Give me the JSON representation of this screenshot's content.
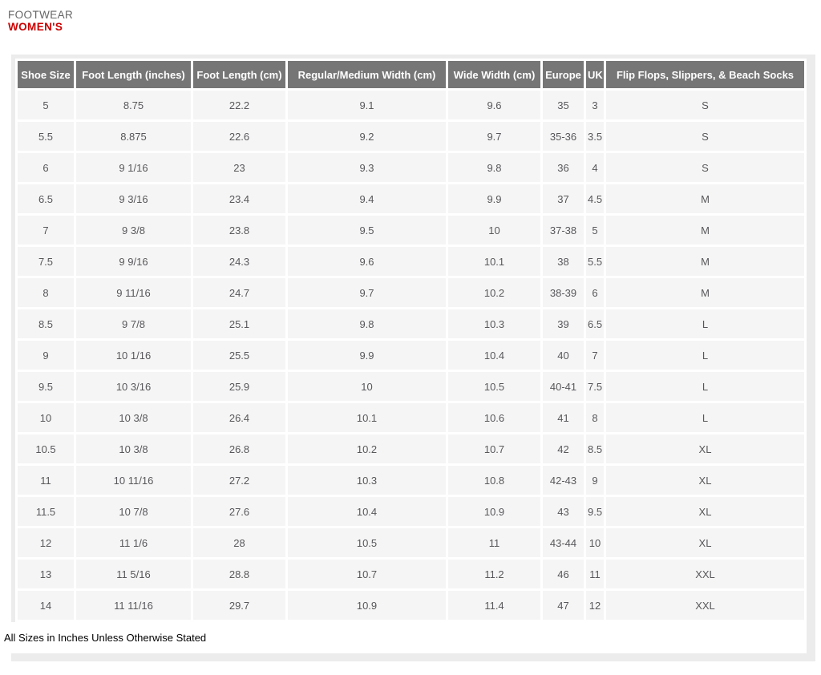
{
  "header": {
    "category": "FOOTWEAR",
    "title": "WOMEN'S"
  },
  "table": {
    "columns": [
      "Shoe Size",
      "Foot Length (inches)",
      "Foot Length (cm)",
      "Regular/Medium Width (cm)",
      "Wide Width (cm)",
      "Europe",
      "UK",
      "Flip Flops, Slippers, & Beach Socks"
    ],
    "rows": [
      [
        "5",
        "8.75",
        "22.2",
        "9.1",
        "9.6",
        "35",
        "3",
        "S"
      ],
      [
        "5.5",
        "8.875",
        "22.6",
        "9.2",
        "9.7",
        "35-36",
        "3.5",
        "S"
      ],
      [
        "6",
        "9 1/16",
        "23",
        "9.3",
        "9.8",
        "36",
        "4",
        "S"
      ],
      [
        "6.5",
        "9 3/16",
        "23.4",
        "9.4",
        "9.9",
        "37",
        "4.5",
        "M"
      ],
      [
        "7",
        "9 3/8",
        "23.8",
        "9.5",
        "10",
        "37-38",
        "5",
        "M"
      ],
      [
        "7.5",
        "9 9/16",
        "24.3",
        "9.6",
        "10.1",
        "38",
        "5.5",
        "M"
      ],
      [
        "8",
        "9 11/16",
        "24.7",
        "9.7",
        "10.2",
        "38-39",
        "6",
        "M"
      ],
      [
        "8.5",
        "9 7/8",
        "25.1",
        "9.8",
        "10.3",
        "39",
        "6.5",
        "L"
      ],
      [
        "9",
        "10 1/16",
        "25.5",
        "9.9",
        "10.4",
        "40",
        "7",
        "L"
      ],
      [
        "9.5",
        "10 3/16",
        "25.9",
        "10",
        "10.5",
        "40-41",
        "7.5",
        "L"
      ],
      [
        "10",
        "10 3/8",
        "26.4",
        "10.1",
        "10.6",
        "41",
        "8",
        "L"
      ],
      [
        "10.5",
        "10 3/8",
        "26.8",
        "10.2",
        "10.7",
        "42",
        "8.5",
        "XL"
      ],
      [
        "11",
        "10 11/16",
        "27.2",
        "10.3",
        "10.8",
        "42-43",
        "9",
        "XL"
      ],
      [
        "11.5",
        "10 7/8",
        "27.6",
        "10.4",
        "10.9",
        "43",
        "9.5",
        "XL"
      ],
      [
        "12",
        "11 1/6",
        "28",
        "10.5",
        "11",
        "43-44",
        "10",
        "XL"
      ],
      [
        "13",
        "11 5/16",
        "28.8",
        "10.7",
        "11.2",
        "46",
        "11",
        "XXL"
      ],
      [
        "14",
        "11 11/16",
        "29.7",
        "10.9",
        "11.4",
        "47",
        "12",
        "XXL"
      ]
    ]
  },
  "footer": {
    "note": "All Sizes in Inches Unless Otherwise Stated"
  },
  "colors": {
    "accent_red": "#cc0000",
    "table_header_bg": "#767676",
    "row_bg": "#f5f5f5",
    "panel_bg": "#ececec",
    "heading_gray": "#666666"
  }
}
